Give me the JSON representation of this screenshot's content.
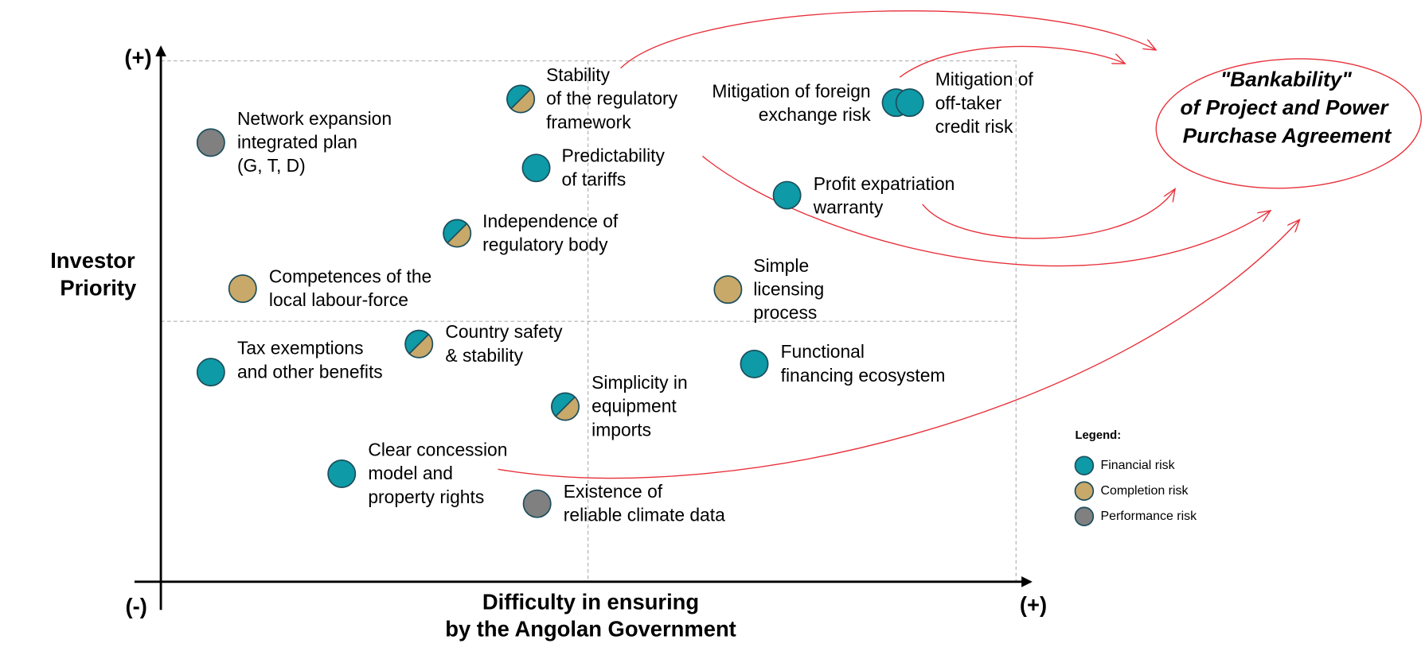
{
  "axes": {
    "y_top": "(+)",
    "origin": "(-)",
    "x_right": "(+)",
    "y_title": [
      "Investor",
      "Priority"
    ],
    "x_title": [
      "Difficulty in ensuring",
      "by the Angolan Government"
    ]
  },
  "items": [
    {
      "label": [
        "Network expansion",
        "integrated plan",
        "(G, T, D)"
      ]
    },
    {
      "label": [
        "Stability",
        "of the regulatory",
        "framework"
      ]
    },
    {
      "label": [
        "Predictability",
        "of tariffs"
      ]
    },
    {
      "label": [
        "Mitigation of foreign",
        "exchange risk"
      ]
    },
    {
      "label": [
        "Mitigation of",
        "off-taker",
        "credit risk"
      ]
    },
    {
      "label": [
        "Profit expatriation",
        "warranty"
      ]
    },
    {
      "label": [
        "Independence of",
        "regulatory body"
      ]
    },
    {
      "label": [
        "Competences of the",
        "local labour-force"
      ]
    },
    {
      "label": [
        "Simple",
        "licensing",
        "process"
      ]
    },
    {
      "label": [
        "Country safety",
        "& stability"
      ]
    },
    {
      "label": [
        "Tax exemptions",
        "and other benefits"
      ]
    },
    {
      "label": [
        "Functional",
        "financing ecosystem"
      ]
    },
    {
      "label": [
        "Simplicity in",
        "equipment",
        "imports"
      ]
    },
    {
      "label": [
        "Clear concession",
        "model and",
        "property rights"
      ]
    },
    {
      "label": [
        "Existence of",
        "reliable climate data"
      ]
    }
  ],
  "legend": {
    "title": "Legend:",
    "entries": [
      "Financial risk",
      "Completion  risk",
      "Performance risk"
    ]
  },
  "target": [
    "\"Bankability\"",
    "of Project and Power",
    "Purchase Agreement"
  ]
}
